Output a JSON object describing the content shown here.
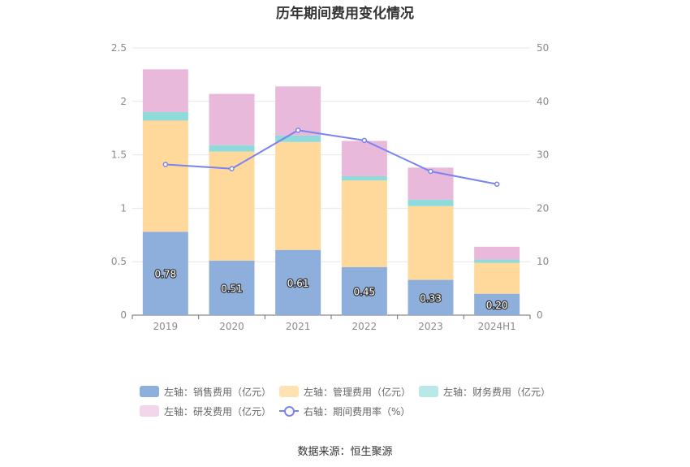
{
  "chart_title": "历年期间费用变化情况",
  "source_text": "数据来源：恒生聚源",
  "colors": {
    "sales": "#8eafdc",
    "admin": "#ffd89b",
    "finance": "#8fdada",
    "rd": "#e8b9da",
    "rate_line": "#7b83ee"
  },
  "legend": {
    "sales": "左轴：销售费用（亿元）",
    "admin": "左轴：管理费用（亿元）",
    "finance": "左轴：财务费用（亿元）",
    "rd": "左轴：研发费用（亿元）",
    "rate": "右轴：期间费用率（%）"
  },
  "chart_data": {
    "type": "bar",
    "stacked": true,
    "title": "历年期间费用变化情况",
    "categories": [
      "2019",
      "2020",
      "2021",
      "2022",
      "2023",
      "2024H1"
    ],
    "y_left": {
      "min": 0,
      "max": 2.5,
      "ticks": [
        "0",
        "0.5",
        "1",
        "1.5",
        "2",
        "2.5"
      ]
    },
    "y_right": {
      "min": 0,
      "max": 50,
      "ticks": [
        "0",
        "10",
        "20",
        "30",
        "40",
        "50"
      ]
    },
    "series": [
      {
        "name": "左轴：销售费用（亿元）",
        "axis": "left",
        "values": [
          0.78,
          0.51,
          0.61,
          0.45,
          0.33,
          0.2
        ],
        "labels": [
          "0.78",
          "0.51",
          "0.61",
          "0.45",
          "0.33",
          "0.20"
        ]
      },
      {
        "name": "左轴：管理费用（亿元）",
        "axis": "left",
        "values": [
          1.04,
          1.02,
          1.01,
          0.81,
          0.69,
          0.29
        ]
      },
      {
        "name": "左轴：财务费用（亿元）",
        "axis": "left",
        "values": [
          0.08,
          0.06,
          0.06,
          0.04,
          0.06,
          0.03
        ]
      },
      {
        "name": "左轴：研发费用（亿元）",
        "axis": "left",
        "values": [
          0.4,
          0.48,
          0.46,
          0.33,
          0.3,
          0.12
        ]
      },
      {
        "name": "右轴：期间费用率（%）",
        "axis": "right",
        "type": "line",
        "values": [
          28.2,
          27.4,
          34.6,
          32.7,
          26.9,
          24.5
        ]
      }
    ],
    "grid": true,
    "legend_position": "bottom"
  }
}
